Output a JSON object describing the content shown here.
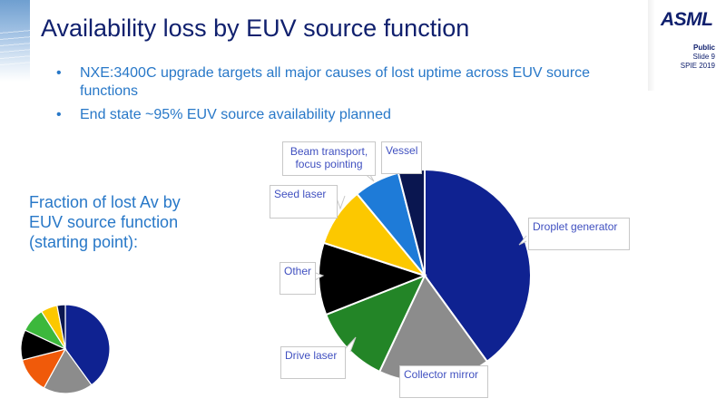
{
  "header": {
    "title": "Availability loss by EUV source function",
    "logo": "ASML",
    "classification": "Public",
    "slide": "Slide 9",
    "event": "SPIE 2019"
  },
  "bullets": [
    "NXE:3400C upgrade targets all major causes of lost uptime across EUV source functions",
    "End state ~95% EUV source availability planned"
  ],
  "subtitle": "Fraction of lost Av by EUV source function (starting point):",
  "chart_data": [
    {
      "type": "pie",
      "title": "Availability loss by EUV source function (NXE:3400C target)",
      "categories": [
        "Droplet generator",
        "Collector mirror",
        "Drive laser",
        "Other",
        "Seed laser",
        "Beam transport, focus pointing",
        "Vessel"
      ],
      "values": [
        40,
        17,
        12,
        11,
        9,
        7,
        4
      ],
      "colors": [
        "#0f2291",
        "#8c8c8c",
        "#238527",
        "#000000",
        "#fcc800",
        "#1e7bd8",
        "#0a1650"
      ],
      "legend": "callout labels",
      "start_angle": "12 o'clock, clockwise"
    },
    {
      "type": "pie",
      "title": "Fraction of lost Av by EUV source function (starting point)",
      "categories": [
        "Droplet generator",
        "Collector mirror",
        "Drive laser",
        "Other",
        "Seed laser",
        "Beam transport, focus pointing",
        "Vessel"
      ],
      "values": [
        40,
        18,
        13,
        11,
        9,
        6,
        3
      ],
      "colors": [
        "#0f2291",
        "#8c8c8c",
        "#f05a0a",
        "#000000",
        "#3cb83c",
        "#fcc800",
        "#0a1650"
      ],
      "legend": "none",
      "start_angle": "12 o'clock, clockwise"
    }
  ],
  "labels": {
    "droplet": "Droplet generator",
    "collector": "Collector mirror",
    "drive": "Drive laser",
    "other": "Other",
    "seed": "Seed laser",
    "beam": "Beam transport, focus pointing",
    "vessel": "Vessel"
  }
}
